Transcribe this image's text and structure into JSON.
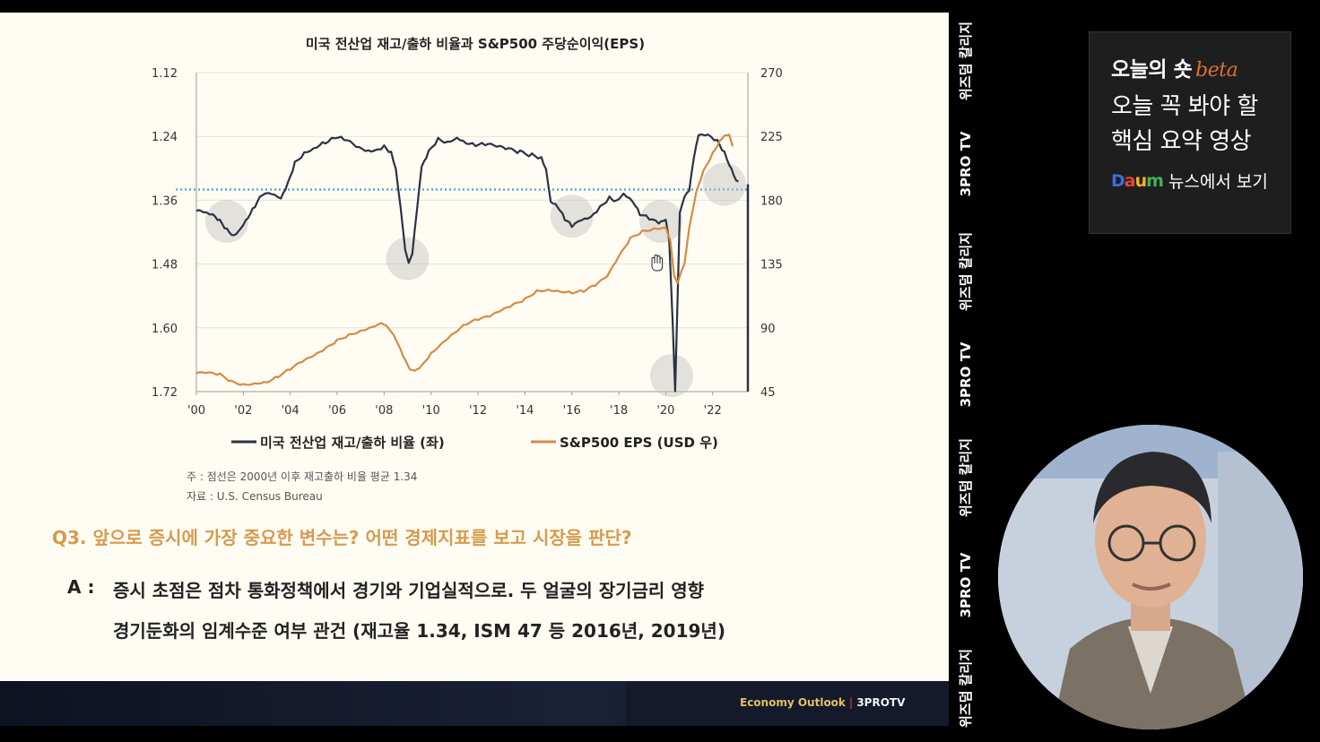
{
  "chart_data": {
    "type": "line",
    "title": "미국 전산업 재고/출하 비율과 S&P500 주당순이익(EPS)",
    "x_ticks": [
      "'00",
      "'02",
      "'04",
      "'06",
      "'08",
      "'10",
      "'12",
      "'14",
      "'16",
      "'18",
      "'20",
      "'22"
    ],
    "y_left": {
      "ticks": [
        "1.12",
        "1.24",
        "1.36",
        "1.48",
        "1.60",
        "1.72"
      ],
      "range": [
        1.12,
        1.72
      ],
      "inverted": true
    },
    "y_right": {
      "ticks": [
        "270",
        "225",
        "180",
        "135",
        "90",
        "45"
      ],
      "range": [
        45,
        270
      ]
    },
    "reference_line": {
      "value": 1.34,
      "style": "dotted",
      "color": "#5aa8d8"
    },
    "series": [
      {
        "name": "미국 전산업 재고/출하 비율 (좌)",
        "axis": "left",
        "color": "#2c3242",
        "points": [
          [
            2000.0,
            1.38
          ],
          [
            2000.3,
            1.385
          ],
          [
            2000.7,
            1.39
          ],
          [
            2001.0,
            1.4
          ],
          [
            2001.3,
            1.415
          ],
          [
            2001.6,
            1.425
          ],
          [
            2001.9,
            1.41
          ],
          [
            2002.2,
            1.39
          ],
          [
            2002.5,
            1.37
          ],
          [
            2002.8,
            1.35
          ],
          [
            2003.2,
            1.35
          ],
          [
            2003.6,
            1.36
          ],
          [
            2003.9,
            1.33
          ],
          [
            2004.2,
            1.29
          ],
          [
            2004.6,
            1.27
          ],
          [
            2005.0,
            1.26
          ],
          [
            2005.5,
            1.25
          ],
          [
            2005.9,
            1.24
          ],
          [
            2006.3,
            1.245
          ],
          [
            2006.8,
            1.26
          ],
          [
            2007.2,
            1.27
          ],
          [
            2007.6,
            1.27
          ],
          [
            2008.0,
            1.26
          ],
          [
            2008.3,
            1.27
          ],
          [
            2008.5,
            1.3
          ],
          [
            2008.7,
            1.37
          ],
          [
            2008.9,
            1.45
          ],
          [
            2009.05,
            1.475
          ],
          [
            2009.2,
            1.46
          ],
          [
            2009.4,
            1.38
          ],
          [
            2009.6,
            1.3
          ],
          [
            2009.9,
            1.27
          ],
          [
            2010.3,
            1.245
          ],
          [
            2010.7,
            1.25
          ],
          [
            2011.1,
            1.24
          ],
          [
            2011.5,
            1.25
          ],
          [
            2011.9,
            1.255
          ],
          [
            2012.3,
            1.255
          ],
          [
            2012.8,
            1.26
          ],
          [
            2013.3,
            1.265
          ],
          [
            2013.8,
            1.27
          ],
          [
            2014.3,
            1.275
          ],
          [
            2014.7,
            1.28
          ],
          [
            2014.9,
            1.3
          ],
          [
            2015.1,
            1.36
          ],
          [
            2015.4,
            1.37
          ],
          [
            2015.7,
            1.395
          ],
          [
            2016.0,
            1.41
          ],
          [
            2016.4,
            1.4
          ],
          [
            2016.8,
            1.395
          ],
          [
            2017.2,
            1.375
          ],
          [
            2017.6,
            1.355
          ],
          [
            2017.9,
            1.36
          ],
          [
            2018.2,
            1.345
          ],
          [
            2018.6,
            1.36
          ],
          [
            2018.9,
            1.385
          ],
          [
            2019.3,
            1.395
          ],
          [
            2019.7,
            1.405
          ],
          [
            2020.0,
            1.4
          ],
          [
            2020.15,
            1.44
          ],
          [
            2020.3,
            1.6
          ],
          [
            2020.4,
            1.72
          ],
          [
            2020.5,
            1.55
          ],
          [
            2020.6,
            1.38
          ],
          [
            2020.8,
            1.35
          ],
          [
            2021.0,
            1.34
          ],
          [
            2021.2,
            1.28
          ],
          [
            2021.4,
            1.24
          ],
          [
            2021.8,
            1.24
          ],
          [
            2022.2,
            1.25
          ],
          [
            2022.5,
            1.27
          ],
          [
            2022.8,
            1.3
          ],
          [
            2023.0,
            1.32
          ],
          [
            2023.1,
            1.325
          ]
        ]
      },
      {
        "name": "S&P500 EPS (USD 우)",
        "axis": "right",
        "color": "#d68a45",
        "points": [
          [
            2000.0,
            58
          ],
          [
            2000.5,
            58
          ],
          [
            2001.0,
            57
          ],
          [
            2001.5,
            52
          ],
          [
            2002.0,
            50
          ],
          [
            2002.5,
            51
          ],
          [
            2003.0,
            52
          ],
          [
            2003.5,
            56
          ],
          [
            2004.0,
            61
          ],
          [
            2004.5,
            66
          ],
          [
            2005.0,
            70
          ],
          [
            2005.5,
            75
          ],
          [
            2006.0,
            81
          ],
          [
            2006.5,
            85
          ],
          [
            2007.0,
            88
          ],
          [
            2007.5,
            91
          ],
          [
            2007.9,
            94
          ],
          [
            2008.2,
            90
          ],
          [
            2008.5,
            82
          ],
          [
            2008.8,
            70
          ],
          [
            2009.1,
            60
          ],
          [
            2009.3,
            59
          ],
          [
            2009.6,
            63
          ],
          [
            2010.0,
            72
          ],
          [
            2010.5,
            80
          ],
          [
            2011.0,
            87
          ],
          [
            2011.5,
            93
          ],
          [
            2012.0,
            96
          ],
          [
            2012.5,
            98
          ],
          [
            2013.0,
            102
          ],
          [
            2013.5,
            106
          ],
          [
            2014.0,
            110
          ],
          [
            2014.5,
            116
          ],
          [
            2015.0,
            117
          ],
          [
            2015.5,
            116
          ],
          [
            2016.0,
            115
          ],
          [
            2016.5,
            116
          ],
          [
            2017.0,
            120
          ],
          [
            2017.5,
            126
          ],
          [
            2018.0,
            140
          ],
          [
            2018.5,
            153
          ],
          [
            2019.0,
            158
          ],
          [
            2019.5,
            160
          ],
          [
            2020.0,
            161
          ],
          [
            2020.2,
            152
          ],
          [
            2020.35,
            128
          ],
          [
            2020.5,
            122
          ],
          [
            2020.8,
            135
          ],
          [
            2021.0,
            160
          ],
          [
            2021.3,
            185
          ],
          [
            2021.6,
            200
          ],
          [
            2022.0,
            213
          ],
          [
            2022.3,
            222
          ],
          [
            2022.5,
            226
          ],
          [
            2022.7,
            227
          ],
          [
            2022.85,
            218
          ]
        ]
      }
    ],
    "highlights": [
      {
        "x": 2001.3,
        "axis": "left",
        "y": 1.4
      },
      {
        "x": 2009.0,
        "axis": "left",
        "y": 1.47
      },
      {
        "x": 2016.0,
        "axis": "left",
        "y": 1.39
      },
      {
        "x": 2019.8,
        "axis": "left",
        "y": 1.4
      },
      {
        "x": 2020.25,
        "axis": "left",
        "y": 1.69
      },
      {
        "x": 2022.5,
        "axis": "left",
        "y": 1.33
      }
    ]
  },
  "legend": {
    "left_series": "미국 전산업 재고/출하 비율 (좌)",
    "right_series": "S&P500 EPS (USD 우)"
  },
  "notes": {
    "note1": "주 : 점선은 2000년 이후 재고출하 비율 평균 1.34",
    "note2": "자료 : U.S. Census Bureau"
  },
  "qa": {
    "question": "Q3. 앞으로 증시에 가장 중요한 변수는? 어떤 경제지표를 보고 시장을 판단?",
    "answer_prefix": "A :",
    "answer_line1": "증시 초점은 점차 통화정책에서 경기와 기업실적으로. 두 얼굴의 장기금리 영향",
    "answer_line2": "경기둔화의 임계수준 여부 관건 (재고율 1.34, ISM 47 등 2016년, 2019년)"
  },
  "footer": {
    "show": "Economy Outlook",
    "separator": "|",
    "brand": "3PROTV"
  },
  "side_strip": {
    "items": [
      "위즈덤 칼리지",
      "3PRO TV",
      "위즈덤 칼리지",
      "3PRO TV",
      "위즈덤 칼리지",
      "3PRO TV",
      "위즈덤 칼리지"
    ]
  },
  "promo": {
    "title": "오늘의 숏",
    "beta": "beta",
    "line1": "오늘 꼭 봐야 할",
    "line2": "핵심 요약 영상",
    "daum_logo": "Daum",
    "daum_text": "뉴스에서 보기"
  },
  "colors": {
    "slide_bg": "#fffdf3",
    "accent_orange": "#d68a45",
    "navy_line": "#2c3242",
    "dotted_ref": "#5aa8d8"
  }
}
